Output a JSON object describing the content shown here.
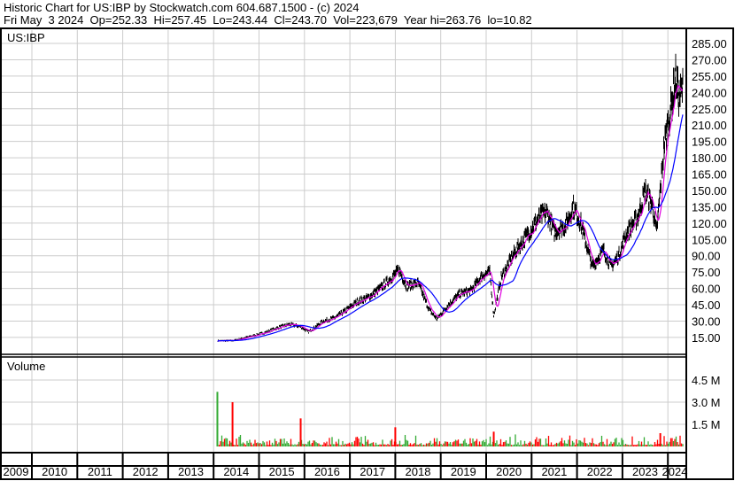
{
  "header": {
    "title": "Historic Chart for US:IBP by Stockwatch.com 604.687.1500 - (c) 2024",
    "quote": "Fri May  3 2024  Op=252.33  Hi=257.45  Lo=243.44  Cl=243.70  Vol=223,679  Year hi=263.76  lo=10.82"
  },
  "chart_data": [
    {
      "type": "line",
      "title": "US:IBP",
      "ylim": [
        0,
        292
      ],
      "yticks": [
        "285.00",
        "270.00",
        "255.00",
        "240.00",
        "225.00",
        "210.00",
        "195.00",
        "180.00",
        "165.00",
        "150.00",
        "135.00",
        "120.00",
        "105.00",
        "90.00",
        "75.00",
        "60.00",
        "45.00",
        "30.00",
        "15.00"
      ],
      "ytick_values": [
        285,
        270,
        255,
        240,
        225,
        210,
        195,
        180,
        165,
        150,
        135,
        120,
        105,
        90,
        75,
        60,
        45,
        30,
        15
      ],
      "grid": true,
      "moving_averages": {
        "short_color": "#e000e0",
        "long_color": "#0000ff"
      },
      "price_color": "#000000",
      "series": [
        {
          "x": [
            "2014-02",
            "2014-06",
            "2014-12",
            "2015-03",
            "2015-06",
            "2015-09",
            "2015-12",
            "2016-02",
            "2016-06",
            "2016-09",
            "2016-12",
            "2017-03",
            "2017-06",
            "2017-09",
            "2017-12",
            "2018-02",
            "2018-04",
            "2018-07",
            "2018-10",
            "2018-12",
            "2019-03",
            "2019-06",
            "2019-09",
            "2019-12",
            "2020-02",
            "2020-03",
            "2020-05",
            "2020-08",
            "2020-12",
            "2021-03",
            "2021-05",
            "2021-07",
            "2021-10",
            "2021-12",
            "2022-02",
            "2022-05",
            "2022-06",
            "2022-08",
            "2022-10",
            "2022-12",
            "2023-02",
            "2023-05",
            "2023-07",
            "2023-09",
            "2023-10",
            "2023-12",
            "2024-02",
            "2024-03",
            "2024-04",
            "2024-05"
          ],
          "y": [
            12,
            12,
            17,
            20,
            24,
            27,
            25,
            20,
            30,
            33,
            40,
            48,
            52,
            60,
            70,
            77,
            62,
            65,
            40,
            32,
            45,
            55,
            58,
            72,
            75,
            35,
            70,
            90,
            110,
            125,
            130,
            112,
            118,
            135,
            120,
            80,
            85,
            95,
            80,
            90,
            110,
            125,
            150,
            135,
            110,
            190,
            230,
            255,
            235,
            244
          ]
        }
      ]
    },
    {
      "type": "bar",
      "title": "Volume",
      "yticks": [
        "4.5 M",
        "3.0 M",
        "1.5 M"
      ],
      "ytick_values": [
        4.5,
        3.0,
        1.5
      ],
      "ylim": [
        0,
        6.2
      ],
      "up_color": "#33aa33",
      "down_color": "#ff0000",
      "typical_volume_m": 0.3,
      "notable_spikes": [
        {
          "x": "2014-02",
          "value": 3.7,
          "color": "up"
        },
        {
          "x": "2014-06",
          "value": 3.0,
          "color": "down"
        },
        {
          "x": "2015-12",
          "value": 1.9,
          "color": "down"
        },
        {
          "x": "2018-01",
          "value": 1.3,
          "color": "down"
        },
        {
          "x": "2020-03",
          "value": 1.0,
          "color": "down"
        },
        {
          "x": "2023-11",
          "value": 0.9,
          "color": "down"
        }
      ]
    }
  ],
  "x_axis": {
    "years": [
      "2009",
      "2010",
      "2011",
      "2012",
      "2013",
      "2014",
      "2015",
      "2016",
      "2017",
      "2018",
      "2019",
      "2020",
      "2021",
      "2022",
      "2023",
      "2024"
    ]
  }
}
